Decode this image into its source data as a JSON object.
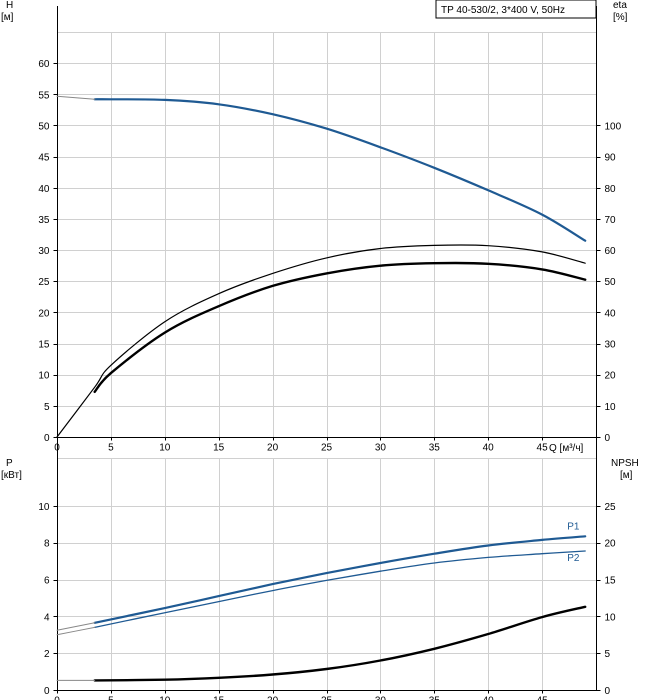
{
  "title": "TP 40-530/2, 3*400 V, 50Hz",
  "colors": {
    "blue": "#1f5a93",
    "black": "#000000",
    "grey": "#888888"
  },
  "chart_data": [
    {
      "type": "line",
      "name": "head-efficiency",
      "x_axis": {
        "label": "Q [м³/ч]",
        "min": 0,
        "max": 50,
        "ticks": [
          0,
          5,
          10,
          15,
          20,
          25,
          30,
          35,
          40,
          45
        ]
      },
      "y_left": {
        "label_top": "H",
        "label_unit": "[м]",
        "min": 0,
        "max": 65,
        "ticks": [
          0,
          5,
          10,
          15,
          20,
          25,
          30,
          35,
          40,
          45,
          50,
          55,
          60
        ]
      },
      "y_right": {
        "label_top": "eta",
        "label_unit": "[%]",
        "min": 0,
        "max": 130,
        "ticks": [
          0,
          10,
          20,
          30,
          40,
          50,
          60,
          70,
          80,
          90,
          100
        ]
      },
      "grid": true,
      "series": [
        {
          "axis": "left",
          "color": "blue",
          "width": 2.2,
          "x": [
            3.5,
            5,
            10,
            15,
            20,
            25,
            30,
            35,
            40,
            45,
            49
          ],
          "y": [
            54.2,
            54.2,
            54.1,
            53.4,
            51.8,
            49.5,
            46.5,
            43.2,
            39.6,
            35.7,
            31.5
          ]
        },
        {
          "axis": "left",
          "color": "grey",
          "width": 1,
          "x": [
            0,
            3.5
          ],
          "y": [
            54.7,
            54.2
          ]
        },
        {
          "axis": "right",
          "color": "black",
          "width": 1.2,
          "x": [
            0,
            3.5,
            5,
            10,
            15,
            20,
            25,
            30,
            35,
            40,
            45,
            49
          ],
          "y": [
            0,
            16,
            23,
            37,
            46,
            52.5,
            57.5,
            60.5,
            61.5,
            61.4,
            59.4,
            55.8
          ]
        },
        {
          "axis": "right",
          "color": "black",
          "width": 2.4,
          "x": [
            3.5,
            5,
            10,
            15,
            20,
            25,
            30,
            35,
            40,
            45,
            49
          ],
          "y": [
            14.5,
            20.5,
            33.5,
            42,
            48.5,
            52.5,
            55,
            55.8,
            55.6,
            53.8,
            50.5
          ]
        }
      ]
    },
    {
      "type": "line",
      "name": "power-npsh",
      "x_axis": {
        "min": 0,
        "max": 50,
        "ticks": [
          0,
          5,
          10,
          15,
          20,
          25,
          30,
          35,
          40,
          45
        ]
      },
      "y_left": {
        "label_top": "P",
        "label_unit": "[кВт]",
        "min": 0,
        "max": 12.6,
        "ticks": [
          0,
          2,
          4,
          6,
          8,
          10
        ]
      },
      "y_right": {
        "label_top": "NPSH",
        "label_unit": "[м]",
        "min": 0,
        "max": 31.5,
        "ticks": [
          0,
          5,
          10,
          15,
          20,
          25
        ]
      },
      "grid": true,
      "series": [
        {
          "name": "P1",
          "axis": "left",
          "color": "blue",
          "width": 2.2,
          "x": [
            3.5,
            10,
            15,
            20,
            25,
            30,
            35,
            40,
            45,
            49
          ],
          "y": [
            3.65,
            4.45,
            5.1,
            5.75,
            6.35,
            6.9,
            7.4,
            7.85,
            8.15,
            8.35
          ]
        },
        {
          "name": "P2",
          "axis": "left",
          "color": "blue",
          "width": 1.3,
          "x": [
            3.5,
            10,
            15,
            20,
            25,
            30,
            35,
            40,
            45,
            49
          ],
          "y": [
            3.4,
            4.2,
            4.8,
            5.4,
            5.95,
            6.45,
            6.9,
            7.2,
            7.4,
            7.55
          ]
        },
        {
          "axis": "left",
          "color": "grey",
          "width": 1,
          "x": [
            0,
            3.5
          ],
          "y": [
            3.25,
            3.65
          ]
        },
        {
          "axis": "left",
          "color": "grey",
          "width": 1,
          "x": [
            0,
            3.5
          ],
          "y": [
            3.0,
            3.4
          ]
        },
        {
          "axis": "right",
          "color": "black",
          "width": 2.4,
          "x": [
            3.5,
            10,
            15,
            20,
            25,
            30,
            35,
            40,
            45,
            49
          ],
          "y": [
            1.3,
            1.4,
            1.65,
            2.1,
            2.85,
            4,
            5.6,
            7.6,
            9.9,
            11.3
          ]
        },
        {
          "axis": "right",
          "color": "grey",
          "width": 1,
          "x": [
            0,
            3.5
          ],
          "y": [
            1.3,
            1.3
          ]
        }
      ]
    }
  ]
}
